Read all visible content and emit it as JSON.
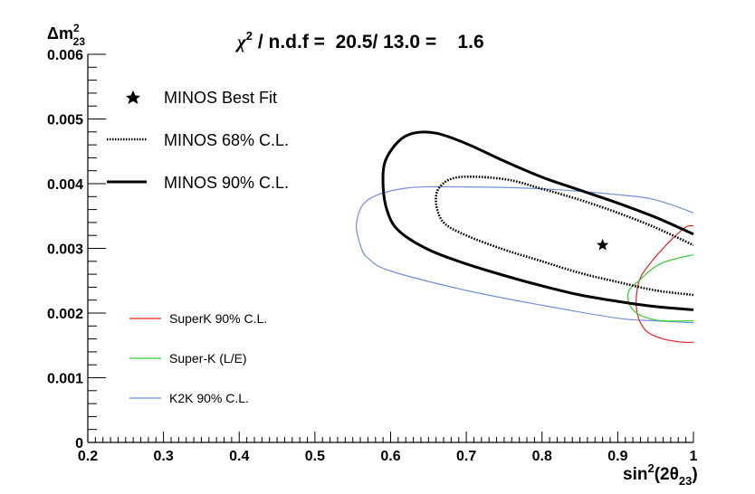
{
  "chart_data": {
    "type": "line",
    "title": "χ² / n.d.f = 20.5/ 13.0 = 1.6",
    "title_parts": {
      "chi": "χ",
      "sup": "2",
      "rest": " / n.d.f =  20.5/ 13.0 =    1.6"
    },
    "xlabel": "sin²(2θ₂₃)",
    "xlabel_parts": {
      "a": "sin",
      "sup": "2",
      "b": "(2θ",
      "sub": "23",
      "c": ")"
    },
    "ylabel": "Δm²₂₃",
    "ylabel_parts": {
      "a": "Δm",
      "sup": "2",
      "sub": "23"
    },
    "xlim": [
      0.2,
      1.0
    ],
    "ylim": [
      0,
      0.006
    ],
    "x_ticks": [
      "0.2",
      "0.3",
      "0.4",
      "0.5",
      "0.6",
      "0.7",
      "0.8",
      "0.9",
      "1"
    ],
    "x_tick_values": [
      0.2,
      0.3,
      0.4,
      0.5,
      0.6,
      0.7,
      0.8,
      0.9,
      1.0
    ],
    "y_ticks": [
      "0",
      "0.001",
      "0.002",
      "0.003",
      "0.004",
      "0.005",
      "0.006"
    ],
    "y_tick_values": [
      0,
      0.001,
      0.002,
      0.003,
      0.004,
      0.005,
      0.006
    ],
    "best_fit": {
      "name": "MINOS Best Fit",
      "x": 0.88,
      "y": 0.00305
    },
    "series": [
      {
        "name": "MINOS 68% C.L.",
        "color": "#000000",
        "style": "dotted",
        "x": [
          1.0,
          0.95,
          0.9,
          0.85,
          0.8,
          0.75,
          0.7,
          0.67,
          0.66,
          0.665,
          0.69,
          0.75,
          0.8,
          0.85,
          0.9,
          0.95,
          1.0
        ],
        "y": [
          0.00228,
          0.00235,
          0.00248,
          0.00262,
          0.0028,
          0.00298,
          0.0032,
          0.0034,
          0.0037,
          0.00395,
          0.0041,
          0.00407,
          0.00392,
          0.00375,
          0.00355,
          0.00332,
          0.00305
        ]
      },
      {
        "name": "MINOS 90% C.L.",
        "color": "#000000",
        "style": "solid",
        "x": [
          1.0,
          0.95,
          0.9,
          0.85,
          0.8,
          0.75,
          0.7,
          0.65,
          0.61,
          0.595,
          0.59,
          0.593,
          0.61,
          0.63,
          0.66,
          0.7,
          0.75,
          0.8,
          0.85,
          0.9,
          0.95,
          1.0
        ],
        "y": [
          0.00205,
          0.0021,
          0.00218,
          0.00228,
          0.00242,
          0.00258,
          0.00276,
          0.00298,
          0.00328,
          0.0036,
          0.004,
          0.00435,
          0.00465,
          0.00478,
          0.00478,
          0.00462,
          0.00435,
          0.0041,
          0.0039,
          0.0037,
          0.00348,
          0.00322
        ]
      },
      {
        "name": "SuperK 90% C.L.",
        "color": "#ee2222",
        "style": "solid",
        "x": [
          1.0,
          0.985,
          0.96,
          0.94,
          0.93,
          0.925,
          0.925,
          0.93,
          0.945,
          0.96,
          0.975,
          0.99,
          1.0
        ],
        "y": [
          0.00155,
          0.00155,
          0.0016,
          0.0017,
          0.00185,
          0.00205,
          0.0023,
          0.00255,
          0.0028,
          0.003,
          0.00318,
          0.00333,
          0.00335
        ]
      },
      {
        "name": "Super-K (L/E)",
        "color": "#33cc33",
        "style": "solid",
        "x": [
          1.0,
          0.96,
          0.94,
          0.925,
          0.915,
          0.915,
          0.93,
          0.945,
          0.96,
          0.98,
          1.0
        ],
        "y": [
          0.00188,
          0.00188,
          0.00192,
          0.002,
          0.00215,
          0.00235,
          0.00252,
          0.00268,
          0.00278,
          0.00285,
          0.0029
        ]
      },
      {
        "name": "K2K 90% C.L.",
        "color": "#6f8fd8",
        "style": "solid",
        "x": [
          1.0,
          0.95,
          0.9,
          0.8,
          0.7,
          0.6,
          0.57,
          0.56,
          0.555,
          0.57,
          0.62,
          0.7,
          0.8,
          0.9,
          0.95,
          1.0
        ],
        "y": [
          0.00185,
          0.00188,
          0.00192,
          0.00212,
          0.00235,
          0.00265,
          0.00285,
          0.00305,
          0.0034,
          0.00375,
          0.00393,
          0.00395,
          0.00392,
          0.00383,
          0.00375,
          0.00355
        ]
      }
    ],
    "legend": [
      {
        "label": "MINOS Best Fit",
        "kind": "star"
      },
      {
        "label": "MINOS 68% C.L.",
        "kind": "dotted"
      },
      {
        "label": "MINOS 90% C.L.",
        "kind": "thick"
      },
      {
        "label": "SuperK 90% C.L.",
        "kind": "red"
      },
      {
        "label": "Super-K (L/E)",
        "kind": "green"
      },
      {
        "label": "K2K 90% C.L.",
        "kind": "blue"
      }
    ],
    "grid": false
  }
}
